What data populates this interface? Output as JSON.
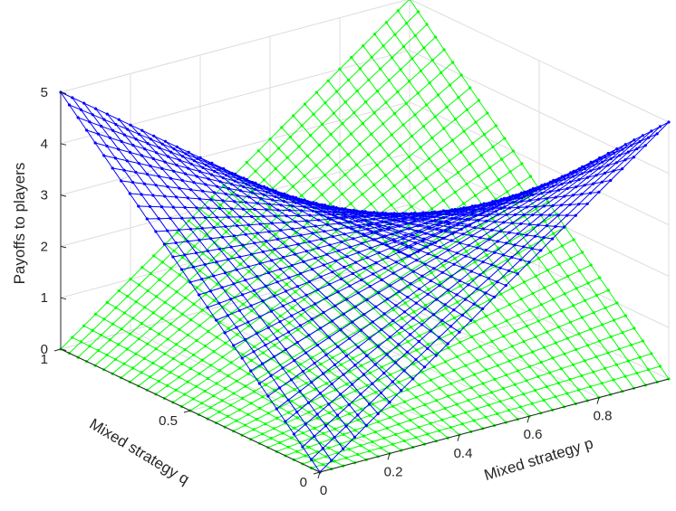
{
  "chart_data": {
    "type": "surface3d",
    "title": "",
    "xlabel": "Mixed strategy p",
    "ylabel": "Mixed strategy q",
    "zlabel": "Payoffs to players",
    "xlim": [
      0,
      1
    ],
    "ylim": [
      0,
      1
    ],
    "zlim": [
      0,
      5
    ],
    "x_ticks": [
      "0",
      "0.2",
      "0.4",
      "0.6",
      "0.8"
    ],
    "y_ticks": [
      "0",
      "0.5",
      "1"
    ],
    "z_ticks": [
      "0",
      "1",
      "2",
      "3",
      "4",
      "5"
    ],
    "grid": true,
    "series": [
      {
        "color": "#0000ff",
        "surface_corners": {
          "p0_q0": 0,
          "p1_q0": 5,
          "p0_q1": 5,
          "p1_q1": 0
        }
      },
      {
        "color": "#00ff00",
        "surface_corners": {
          "p0_q0": 0,
          "p1_q0": 0,
          "p0_q1": 0,
          "p1_q1": 5
        }
      }
    ]
  }
}
